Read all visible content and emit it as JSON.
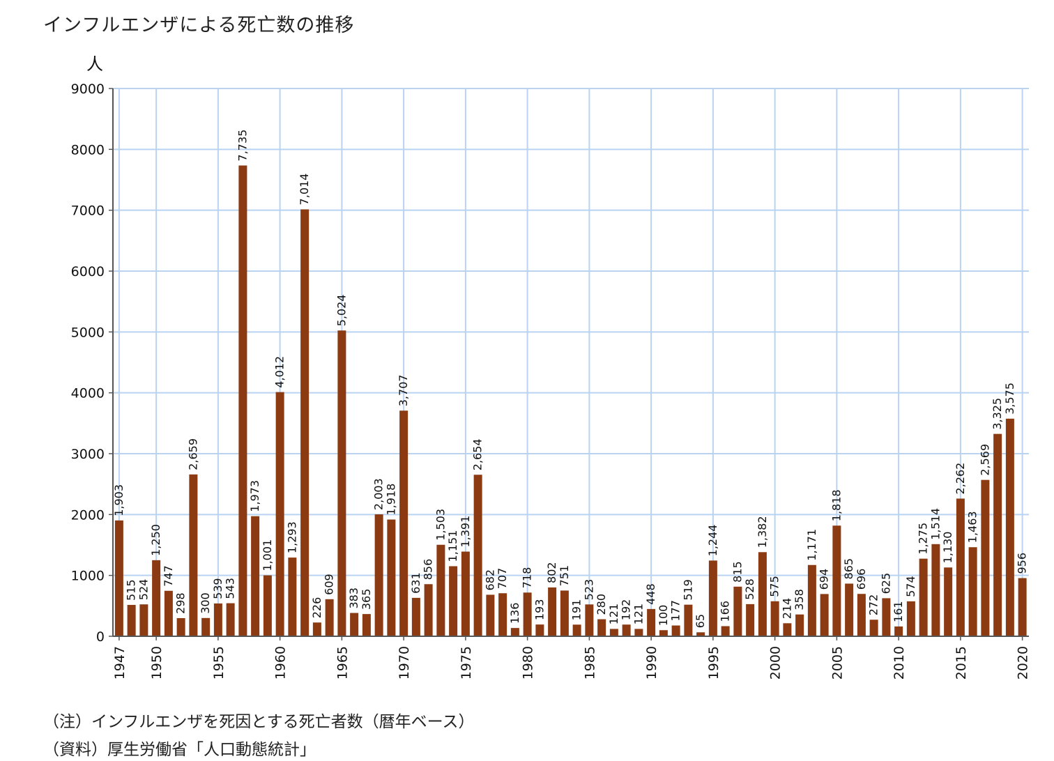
{
  "title": "インフルエンザによる死亡数の推移",
  "note1": "（注）インフルエンザを死因とする死亡者数（暦年ベース）",
  "note2": "（資料）厚生労働省「人口動態統計」",
  "chart_data": {
    "type": "bar",
    "ylabel": "人",
    "ylim": [
      0,
      9000
    ],
    "yticks": [
      0,
      1000,
      2000,
      3000,
      4000,
      5000,
      6000,
      7000,
      8000,
      9000
    ],
    "xticks": [
      1947,
      1950,
      1955,
      1960,
      1965,
      1970,
      1975,
      1980,
      1985,
      1990,
      1995,
      2000,
      2005,
      2010,
      2015,
      2020
    ],
    "grid": true,
    "bar_color": "#8B3A12",
    "grid_color": "#b9d3f0",
    "categories": [
      1947,
      1948,
      1949,
      1950,
      1951,
      1952,
      1953,
      1954,
      1955,
      1956,
      1957,
      1958,
      1959,
      1960,
      1961,
      1962,
      1963,
      1964,
      1965,
      1966,
      1967,
      1968,
      1969,
      1970,
      1971,
      1972,
      1973,
      1974,
      1975,
      1976,
      1977,
      1978,
      1979,
      1980,
      1981,
      1982,
      1983,
      1984,
      1985,
      1986,
      1987,
      1988,
      1989,
      1990,
      1991,
      1992,
      1993,
      1994,
      1995,
      1996,
      1997,
      1998,
      1999,
      2000,
      2001,
      2002,
      2003,
      2004,
      2005,
      2006,
      2007,
      2008,
      2009,
      2010,
      2011,
      2012,
      2013,
      2014,
      2015,
      2016,
      2017,
      2018,
      2019,
      2020
    ],
    "values": [
      1903,
      515,
      524,
      1250,
      747,
      298,
      2659,
      300,
      539,
      543,
      7735,
      1973,
      1001,
      4012,
      1293,
      7014,
      226,
      609,
      5024,
      383,
      365,
      2003,
      1918,
      3707,
      631,
      856,
      1503,
      1151,
      1391,
      2654,
      682,
      707,
      136,
      718,
      193,
      802,
      751,
      191,
      523,
      280,
      121,
      192,
      121,
      448,
      100,
      177,
      519,
      65,
      1244,
      166,
      815,
      528,
      1382,
      575,
      214,
      358,
      1171,
      694,
      1818,
      865,
      696,
      272,
      625,
      161,
      574,
      1275,
      1514,
      1130,
      2262,
      1463,
      2569,
      3325,
      3575,
      956
    ],
    "labels": [
      "1,903",
      "515",
      "524",
      "1,250",
      "747",
      "298",
      "2,659",
      "300",
      "539",
      "543",
      "7,735",
      "1,973",
      "1,001",
      "4,012",
      "1,293",
      "7,014",
      "226",
      "609",
      "5,024",
      "383",
      "365",
      "2,003",
      "1,918",
      "3,707",
      "631",
      "856",
      "1,503",
      "1,151",
      "1,391",
      "2,654",
      "682",
      "707",
      "136",
      "718",
      "193",
      "802",
      "751",
      "191",
      "523",
      "280",
      "121",
      "192",
      "121",
      "448",
      "100",
      "177",
      "519",
      "65",
      "1,244",
      "166",
      "815",
      "528",
      "1,382",
      "575",
      "214",
      "358",
      "1,171",
      "694",
      "1,818",
      "865",
      "696",
      "272",
      "625",
      "161",
      "574",
      "1,275",
      "1,514",
      "1,130",
      "2,262",
      "1,463",
      "2,569",
      "3,325",
      "3,575",
      "956"
    ]
  }
}
